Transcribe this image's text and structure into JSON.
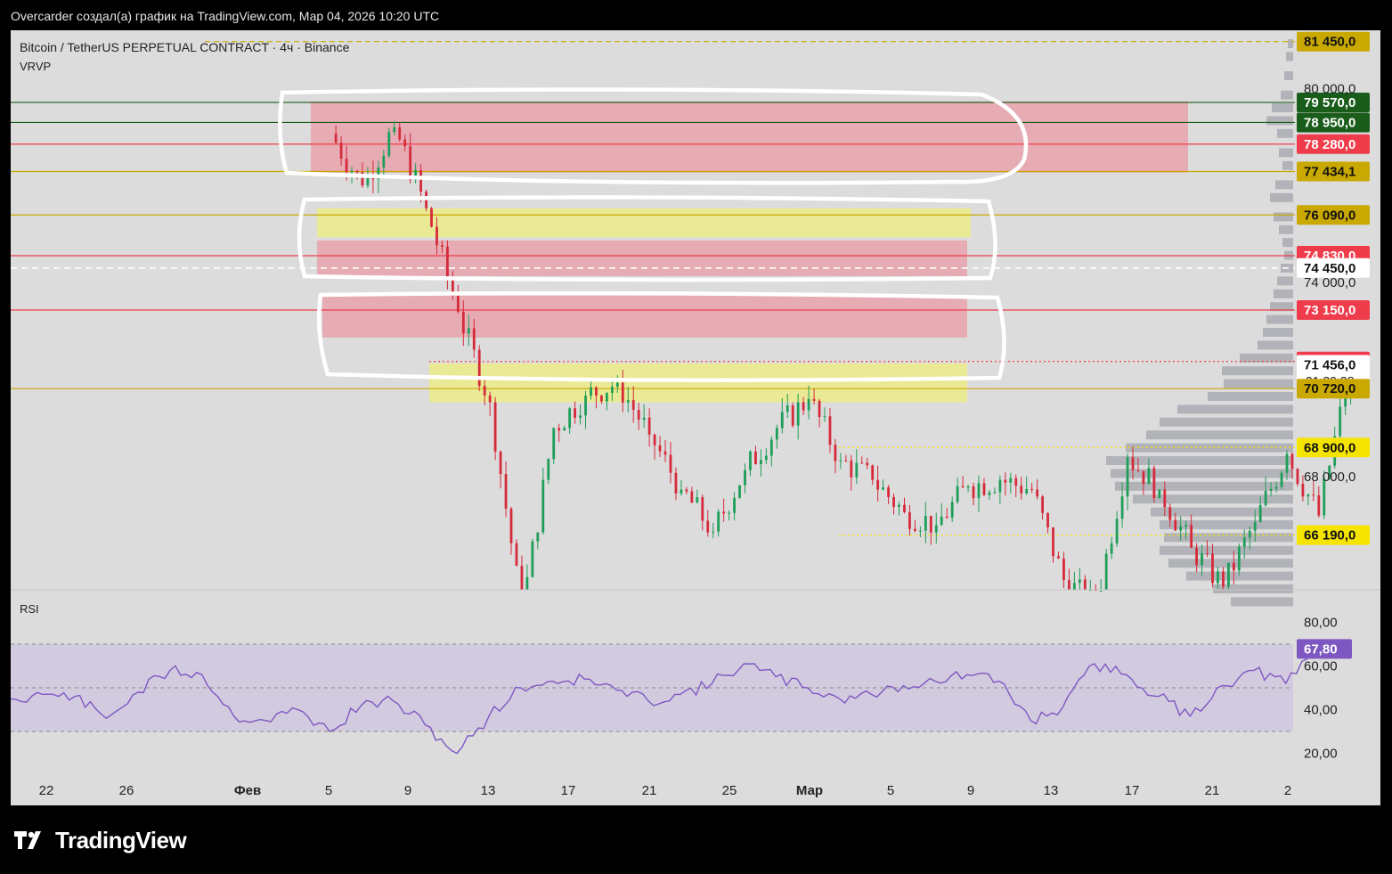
{
  "header": {
    "caption": "Overcarder создал(а) график на TradingView.com, Мар 04, 2026 10:20 UTC"
  },
  "legend": {
    "symbol": "Bitcoin / TetherUS PERPETUAL CONTRACT · 4ч · Binance",
    "indicator": "VRVP",
    "rsi_label": "RSI"
  },
  "footer": {
    "brand": "TradingView"
  },
  "colors": {
    "background": "#dcdcdc",
    "bull": "#1e9e58",
    "bear": "#d62a3a",
    "resistance_zone": "#e8a2ab",
    "support_zone": "#ecec8a",
    "rsi_line": "#7e57c2",
    "rsi_band": "#d0c9df",
    "green_label": "#1a5c1a",
    "red_label": "#ef3c4b",
    "yellow_label": "#c9a800"
  },
  "chart_data": [
    {
      "type": "candlestick",
      "title": "",
      "ylim": [
        64500,
        81800
      ],
      "price_axis_ticks": [
        "80 000,0",
        "74 000,0",
        "68 000,0"
      ],
      "time_axis_ticks": [
        "22",
        "26",
        "Фев",
        "5",
        "9",
        "13",
        "17",
        "21",
        "25",
        "Мар",
        "5",
        "9",
        "13",
        "17",
        "21",
        "2"
      ],
      "price_labels": [
        {
          "value": 81450,
          "text": "81 450,0",
          "style": "yellow"
        },
        {
          "value": 79570,
          "text": "79 570,0",
          "style": "green"
        },
        {
          "value": 78950,
          "text": "78 950,0",
          "style": "green"
        },
        {
          "value": 78280,
          "text": "78 280,0",
          "style": "red"
        },
        {
          "value": 77434.1,
          "text": "77 434,1",
          "style": "yellow"
        },
        {
          "value": 76090,
          "text": "76 090,0",
          "style": "yellow"
        },
        {
          "value": 74830,
          "text": "74 830,0",
          "style": "red"
        },
        {
          "value": 74450,
          "text": "74 450,0",
          "style": "white"
        },
        {
          "value": 73150,
          "text": "73 150,0",
          "style": "red"
        },
        {
          "value": 71560,
          "text": "71 560,0",
          "style": "red"
        },
        {
          "value": 71456,
          "text": "71 456,0",
          "style": "white",
          "subtext": "01:39:38"
        },
        {
          "value": 70720,
          "text": "70 720,0",
          "style": "yellow"
        },
        {
          "value": 68900,
          "text": "68 900,0",
          "style": "brightyellow"
        },
        {
          "value": 66190,
          "text": "66 190,0",
          "style": "brightyellow"
        }
      ],
      "zones": [
        {
          "kind": "resistance",
          "from": 77400,
          "to": 79600
        },
        {
          "kind": "support",
          "from": 75400,
          "to": 76300
        },
        {
          "kind": "resistance",
          "from": 74200,
          "to": 75300
        },
        {
          "kind": "resistance",
          "from": 72300,
          "to": 73600
        },
        {
          "kind": "support",
          "from": 70300,
          "to": 71500
        }
      ],
      "series": [
        {
          "name": "",
          "close_path": [
            {
              "date": "2026-01-31",
              "close": 78600
            },
            {
              "date": "2026-02-01",
              "close": 77000
            },
            {
              "date": "2026-02-02",
              "close": 78800
            },
            {
              "date": "2026-02-03",
              "close": 76300
            },
            {
              "date": "2026-02-04",
              "close": 73100
            },
            {
              "date": "2026-02-05",
              "close": 70300
            },
            {
              "date": "2026-02-06",
              "close": 63800
            },
            {
              "date": "2026-02-07",
              "close": 69500
            },
            {
              "date": "2026-02-08",
              "close": 70500
            },
            {
              "date": "2026-02-09",
              "close": 70900
            },
            {
              "date": "2026-02-10",
              "close": 69300
            },
            {
              "date": "2026-02-11",
              "close": 67600
            },
            {
              "date": "2026-02-12",
              "close": 66300
            },
            {
              "date": "2026-02-13",
              "close": 68200
            },
            {
              "date": "2026-02-14",
              "close": 69500
            },
            {
              "date": "2026-02-15",
              "close": 70400
            },
            {
              "date": "2026-02-16",
              "close": 68500
            },
            {
              "date": "2026-02-17",
              "close": 67900
            },
            {
              "date": "2026-02-18",
              "close": 66900
            },
            {
              "date": "2026-02-19",
              "close": 66500
            },
            {
              "date": "2026-02-20",
              "close": 67700
            },
            {
              "date": "2026-02-21",
              "close": 67900
            },
            {
              "date": "2026-02-22",
              "close": 67600
            },
            {
              "date": "2026-02-23",
              "close": 64800
            },
            {
              "date": "2026-02-24",
              "close": 64000
            },
            {
              "date": "2026-02-25",
              "close": 68600
            },
            {
              "date": "2026-02-26",
              "close": 67600
            },
            {
              "date": "2026-02-27",
              "close": 65800
            },
            {
              "date": "2026-02-28",
              "close": 64600
            },
            {
              "date": "2026-03-01",
              "close": 66600
            },
            {
              "date": "2026-03-02",
              "close": 68700
            },
            {
              "date": "2026-03-03",
              "close": 66800
            },
            {
              "date": "2026-03-04",
              "close": 71456
            }
          ]
        },
        {
          "name": "RSI",
          "ylim": [
            10,
            90
          ],
          "ticks": [
            "80,00",
            "60,00",
            "40,00",
            "20,00"
          ],
          "band": [
            30,
            70
          ],
          "current": {
            "value": 67.8,
            "text": "67,80"
          },
          "values": [
            {
              "date": "2026-01-20",
              "rsi": 29
            },
            {
              "date": "2026-01-21",
              "rsi": 42
            },
            {
              "date": "2026-01-22",
              "rsi": 45
            },
            {
              "date": "2026-01-23",
              "rsi": 47
            },
            {
              "date": "2026-01-24",
              "rsi": 46
            },
            {
              "date": "2026-01-25",
              "rsi": 36
            },
            {
              "date": "2026-01-26",
              "rsi": 48
            },
            {
              "date": "2026-01-27",
              "rsi": 58
            },
            {
              "date": "2026-01-28",
              "rsi": 56
            },
            {
              "date": "2026-01-29",
              "rsi": 37
            },
            {
              "date": "2026-01-30",
              "rsi": 35
            },
            {
              "date": "2026-01-31",
              "rsi": 40
            },
            {
              "date": "2026-02-01",
              "rsi": 30
            },
            {
              "date": "2026-02-02",
              "rsi": 42
            },
            {
              "date": "2026-02-03",
              "rsi": 44
            },
            {
              "date": "2026-02-04",
              "rsi": 33
            },
            {
              "date": "2026-02-05",
              "rsi": 20
            },
            {
              "date": "2026-02-06",
              "rsi": 37
            },
            {
              "date": "2026-02-07",
              "rsi": 50
            },
            {
              "date": "2026-02-08",
              "rsi": 53
            },
            {
              "date": "2026-02-09",
              "rsi": 54
            },
            {
              "date": "2026-02-10",
              "rsi": 49
            },
            {
              "date": "2026-02-11",
              "rsi": 44
            },
            {
              "date": "2026-02-12",
              "rsi": 47
            },
            {
              "date": "2026-02-13",
              "rsi": 52
            },
            {
              "date": "2026-02-14",
              "rsi": 61
            },
            {
              "date": "2026-02-15",
              "rsi": 55
            },
            {
              "date": "2026-02-16",
              "rsi": 50
            },
            {
              "date": "2026-02-17",
              "rsi": 45
            },
            {
              "date": "2026-02-18",
              "rsi": 47
            },
            {
              "date": "2026-02-19",
              "rsi": 51
            },
            {
              "date": "2026-02-20",
              "rsi": 53
            },
            {
              "date": "2026-02-21",
              "rsi": 56
            },
            {
              "date": "2026-02-22",
              "rsi": 53
            },
            {
              "date": "2026-02-23",
              "rsi": 35
            },
            {
              "date": "2026-02-24",
              "rsi": 41
            },
            {
              "date": "2026-02-25",
              "rsi": 61
            },
            {
              "date": "2026-02-26",
              "rsi": 56
            },
            {
              "date": "2026-02-27",
              "rsi": 46
            },
            {
              "date": "2026-02-28",
              "rsi": 37
            },
            {
              "date": "2026-03-01",
              "rsi": 51
            },
            {
              "date": "2026-03-02",
              "rsi": 58
            },
            {
              "date": "2026-03-03",
              "rsi": 52
            },
            {
              "date": "2026-03-04",
              "rsi": 67.8
            }
          ]
        }
      ]
    }
  ]
}
